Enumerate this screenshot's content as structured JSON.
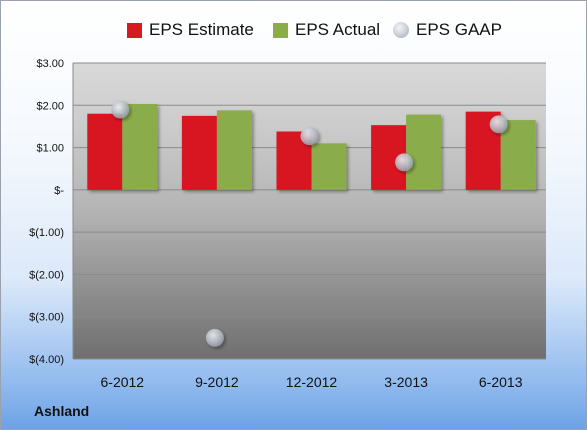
{
  "company": "Ashland",
  "legend": {
    "estimate": "EPS Estimate",
    "actual": "EPS Actual",
    "gaap": "EPS GAAP"
  },
  "colors": {
    "estimate": "#d71920",
    "actual": "#8bac4b",
    "gaap": "#b8bec7"
  },
  "chart_data": {
    "type": "bar",
    "categories": [
      "6-2012",
      "9-2012",
      "12-2012",
      "3-2013",
      "6-2013"
    ],
    "series": [
      {
        "name": "EPS Estimate",
        "values": [
          1.8,
          1.75,
          1.38,
          1.53,
          1.85
        ]
      },
      {
        "name": "EPS Actual",
        "values": [
          2.03,
          1.88,
          1.1,
          1.78,
          1.65
        ]
      },
      {
        "name": "EPS GAAP",
        "values": [
          1.9,
          -3.5,
          1.27,
          0.65,
          1.55
        ],
        "style": "scatter"
      }
    ],
    "y_ticks": [
      "$3.00",
      "$2.00",
      "$1.00",
      "$-",
      "$(1.00)",
      "$(2.00)",
      "$(3.00)",
      "$(4.00)"
    ],
    "ylim": [
      -4,
      3
    ],
    "grid": true,
    "legend_position": "top"
  }
}
